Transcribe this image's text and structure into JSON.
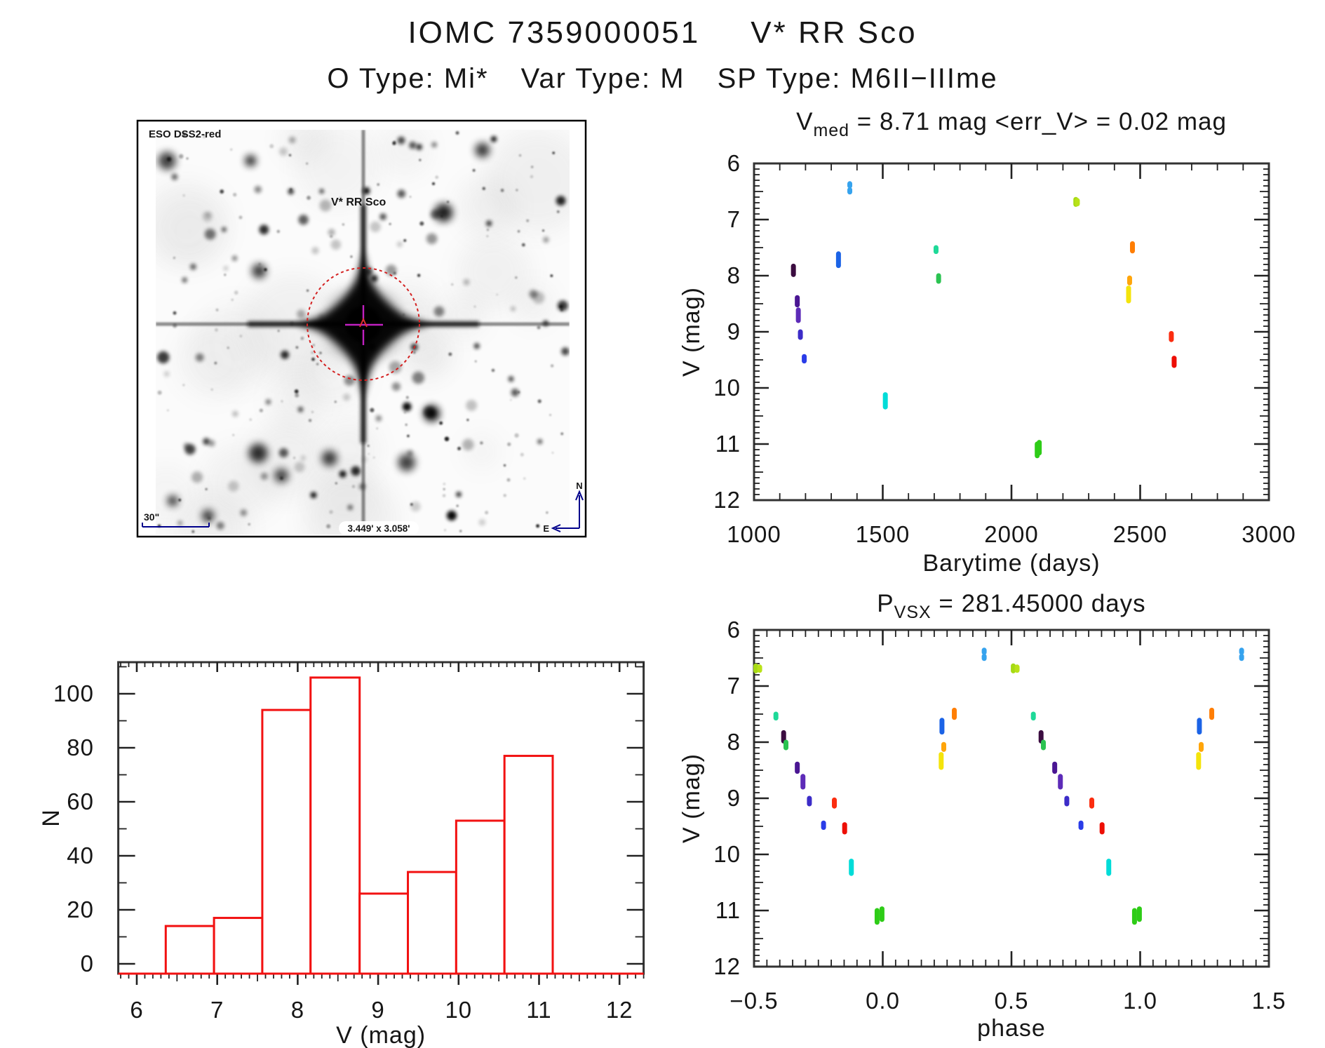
{
  "header": {
    "title_id": "IOMC 7359000051",
    "title_star": "V* RR Sco",
    "otype_label": "O Type: Mi*",
    "vartype_label": "Var Type: M",
    "sptype_label": "SP Type: M6II−IIIme"
  },
  "finder": {
    "survey_label": "ESO DSS2-red",
    "target_label": "V* RR Sco",
    "scalebar_label": "30\"",
    "fov_label": "3.449' x 3.058'",
    "compass_north": "N",
    "compass_east": "E",
    "annotation_color": "#00008b",
    "marker_color": "#d42222",
    "crosshair_color": "#c020c0"
  },
  "chart_data": [
    {
      "id": "lightcurve",
      "type": "scatter",
      "title": {
        "prefix": "V",
        "sub": "med",
        "rest": "  =  8.71  mag  <err_V>  =  0.02  mag"
      },
      "xlabel": "Barytime (days)",
      "ylabel": "V (mag)",
      "xlim": [
        1000,
        3000
      ],
      "ylim": [
        12,
        6
      ],
      "xticks": [
        1000,
        1500,
        2000,
        2500,
        3000
      ],
      "yticks": [
        6,
        7,
        8,
        9,
        10,
        11,
        12
      ],
      "x_minor_step": 100,
      "y_minor_step": 0.1,
      "grid": false,
      "legend": "none",
      "series": [
        {
          "t": 1153,
          "phase": 0.615,
          "color": "#3b0c40",
          "segments": [
            [
              7.83,
              7.98
            ]
          ]
        },
        {
          "t": 1168,
          "phase": 0.668,
          "color": "#4a1693",
          "segments": [
            [
              8.39,
              8.52
            ]
          ]
        },
        {
          "t": 1172,
          "phase": 0.69,
          "color": "#5d2bb8",
          "segments": [
            [
              8.61,
              8.8
            ]
          ]
        },
        {
          "t": 1180,
          "phase": 0.715,
          "color": "#3c2cc8",
          "segments": [
            [
              9.0,
              9.1
            ]
          ]
        },
        {
          "t": 1195,
          "phase": 0.77,
          "color": "#2a3ce8",
          "segments": [
            [
              9.44,
              9.52
            ]
          ]
        },
        {
          "t": 1328,
          "phase": 0.23,
          "color": "#1b63e6",
          "segments": [
            [
              7.61,
              7.82
            ]
          ]
        },
        {
          "t": 1372,
          "phase": 0.394,
          "color": "#36a3ee",
          "segments": [
            [
              6.36,
              6.4
            ],
            [
              6.47,
              6.51
            ]
          ]
        },
        {
          "t": 1510,
          "phase": 0.878,
          "color": "#00dcd8",
          "segments": [
            [
              10.12,
              10.34
            ]
          ]
        },
        {
          "t": 1707,
          "phase": 0.585,
          "color": "#1ed998",
          "segments": [
            [
              7.5,
              7.57
            ]
          ]
        },
        {
          "t": 1717,
          "phase": 0.624,
          "color": "#2bc351",
          "segments": [
            [
              8.0,
              8.1
            ]
          ]
        },
        {
          "t": 2100,
          "phase": 0.978,
          "color": "#2ecc17",
          "segments": [
            [
              11.0,
              11.21
            ]
          ]
        },
        {
          "t": 2108,
          "phase": 0.997,
          "color": "#2ecc17",
          "segments": [
            [
              10.97,
              11.16
            ]
          ]
        },
        {
          "t": 2250,
          "phase": 0.507,
          "color": "#a6da15",
          "segments": [
            [
              6.64,
              6.73
            ]
          ]
        },
        {
          "t": 2256,
          "phase": 0.522,
          "color": "#b9e218",
          "segments": [
            [
              6.66,
              6.72
            ]
          ]
        },
        {
          "t": 2455,
          "phase": 0.227,
          "color": "#f4e40b",
          "segments": [
            [
              8.22,
              8.45
            ]
          ]
        },
        {
          "t": 2459,
          "phase": 0.237,
          "color": "#ffa50a",
          "segments": [
            [
              8.04,
              8.13
            ]
          ]
        },
        {
          "t": 2470,
          "phase": 0.278,
          "color": "#ff7e04",
          "segments": [
            [
              7.43,
              7.56
            ]
          ]
        },
        {
          "t": 2621,
          "phase": 0.812,
          "color": "#fb2d10",
          "segments": [
            [
              9.03,
              9.14
            ]
          ]
        },
        {
          "t": 2632,
          "phase": 0.852,
          "color": "#ed0e05",
          "segments": [
            [
              9.47,
              9.6
            ]
          ]
        }
      ]
    },
    {
      "id": "histogram",
      "type": "bar",
      "title": "",
      "xlabel": "V (mag)",
      "ylabel": "N",
      "xlim": [
        5.77,
        12.3
      ],
      "ylim": [
        -3,
        112
      ],
      "xticks": [
        6,
        7,
        8,
        9,
        10,
        11,
        12
      ],
      "yticks": [
        0,
        20,
        40,
        60,
        80,
        100
      ],
      "x_minor_step": 0.1,
      "y_minor_step": 10,
      "bin_edges": [
        6.36,
        6.96,
        7.56,
        8.16,
        8.77,
        9.37,
        9.97,
        10.57,
        11.17
      ],
      "counts": [
        14,
        17,
        94,
        106,
        26,
        34,
        53,
        77
      ],
      "bar_color": "#f21111",
      "grid": false,
      "legend": "none"
    },
    {
      "id": "phasecurve",
      "type": "scatter",
      "title": {
        "prefix": "P",
        "sub": "VSX",
        "rest": "  =  281.45000  days"
      },
      "xlabel": "phase",
      "ylabel": "V (mag)",
      "xlim": [
        -0.5,
        1.5
      ],
      "ylim": [
        12,
        6
      ],
      "xticks": [
        -0.5,
        0.0,
        0.5,
        1.0,
        1.5
      ],
      "yticks": [
        6,
        7,
        8,
        9,
        10,
        11,
        12
      ],
      "x_minor_step": 0.05,
      "y_minor_step": 0.1,
      "grid": false,
      "legend": "none",
      "series_ref": "lightcurve",
      "repeat_offsets": [
        -1,
        0,
        1
      ],
      "period_days": 281.45
    }
  ]
}
